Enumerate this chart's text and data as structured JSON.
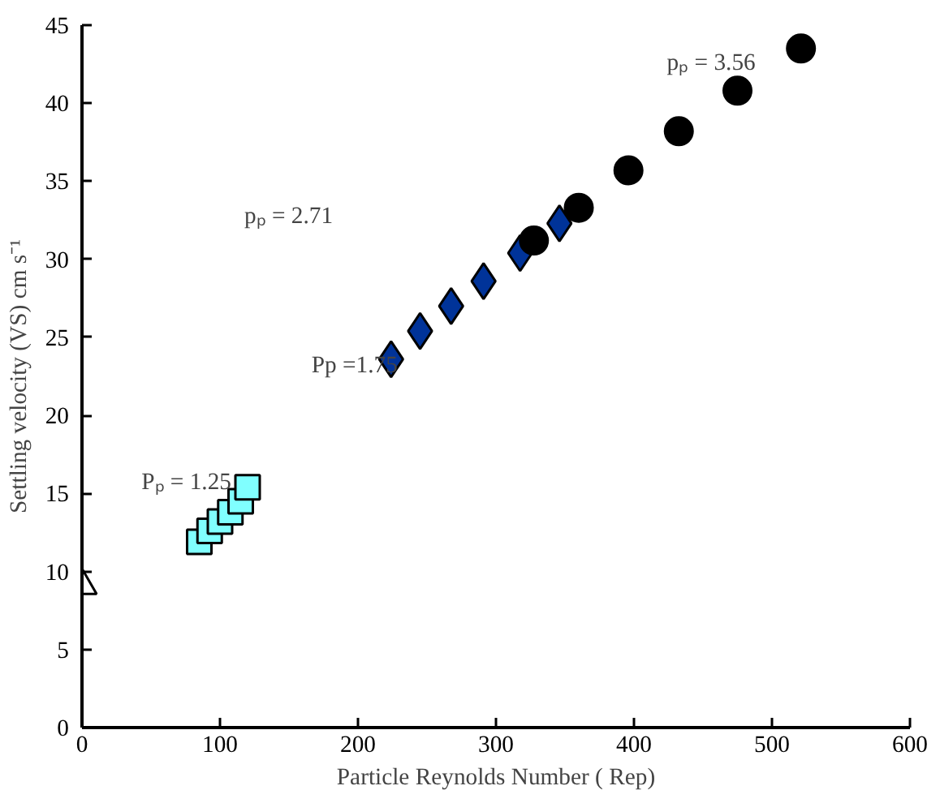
{
  "chart_data": {
    "type": "scatter",
    "xlabel": "Particle Reynolds Number ( Rep)",
    "ylabel": "Settling velocity (VS) cm s⁻¹",
    "xlim": [
      0,
      600
    ],
    "ylim": [
      0,
      45
    ],
    "xticks": [
      0,
      100,
      200,
      300,
      400,
      500,
      600
    ],
    "yticks": [
      0,
      5,
      10,
      15,
      20,
      25,
      30,
      35,
      40,
      45
    ],
    "grid": false,
    "series": [
      {
        "marker": "triangle",
        "color": "#ffffff",
        "x": [
          0
        ],
        "values": [
          9.1
        ]
      },
      {
        "name": "Pₚ = 1.25",
        "marker": "square",
        "color": "#80ffff",
        "x": [
          85,
          92.5,
          100,
          107.5,
          115,
          120
        ],
        "values": [
          11.9,
          12.6,
          13.2,
          13.8,
          14.5,
          15.4
        ]
      },
      {
        "name": "Pp =1.75",
        "marker": "diamond",
        "color": "#003399",
        "x": [
          224,
          245,
          267.5,
          291,
          317.5,
          346
        ],
        "values": [
          23.6,
          25.4,
          27.0,
          28.6,
          30.4,
          32.3
        ]
      },
      {
        "name": "pₚ = 3.56",
        "marker": "circle",
        "color": "#000000",
        "x": [
          327.5,
          360,
          396,
          432.5,
          475,
          521
        ],
        "values": [
          31.2,
          33.3,
          35.7,
          38.2,
          40.8,
          43.5
        ]
      }
    ],
    "annotations": [
      "pₚ = 2.71"
    ]
  }
}
